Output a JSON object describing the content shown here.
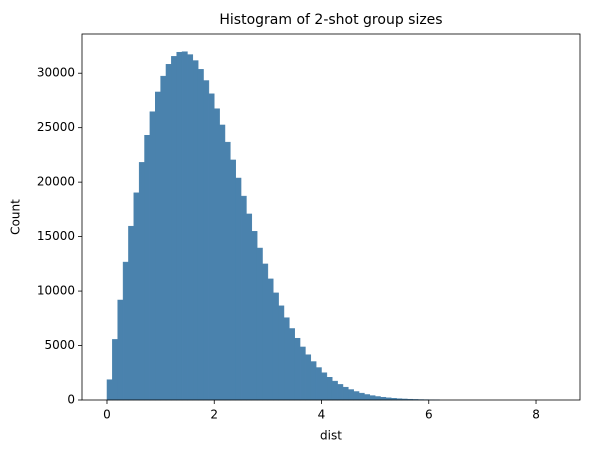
{
  "chart_data": {
    "type": "histogram",
    "title": "Histogram of 2-shot group sizes",
    "x_label": "dist",
    "y_label": "Count",
    "color": "#4a82ad",
    "bins": [
      0,
      0.1,
      0.2,
      0.3,
      0.4,
      0.5,
      0.6,
      0.7,
      0.8,
      0.9,
      1,
      1.1,
      1.2,
      1.3,
      1.4,
      1.5,
      1.6,
      1.7,
      1.8,
      1.9,
      2,
      2.1,
      2.2,
      2.3,
      2.4,
      2.5,
      2.6,
      2.7,
      2.8,
      2.9,
      3,
      3.1,
      3.2,
      3.3,
      3.4,
      3.5,
      3.6,
      3.7,
      3.8,
      3.9,
      4,
      4.1,
      4.2,
      4.3,
      4.4,
      4.5,
      4.6,
      4.7,
      4.8,
      4.9,
      5,
      5.1,
      5.2,
      5.3,
      5.4,
      5.5,
      5.6,
      5.7,
      5.8,
      5.9,
      6,
      6.1,
      6.2
    ],
    "values": [
      1864,
      5564,
      9180,
      12661,
      15956,
      19021,
      21815,
      24305,
      26466,
      28278,
      29731,
      30819,
      31548,
      31927,
      31974,
      31710,
      31161,
      30356,
      29328,
      28111,
      26741,
      25250,
      23671,
      22039,
      20378,
      18718,
      17081,
      15486,
      13951,
      12492,
      11118,
      9834,
      8646,
      7556,
      6565,
      5671,
      4870,
      4157,
      3530,
      2979,
      2501,
      2088,
      1734,
      1432,
      1176,
      960,
      779,
      629,
      505,
      404,
      321,
      254,
      199,
      156,
      121,
      94,
      72,
      55,
      42,
      32,
      24,
      18
    ],
    "xlim": [
      -0.466,
      8.82
    ],
    "xticks": [
      0,
      2,
      4,
      6,
      8
    ],
    "ylim": [
      0,
      33600
    ],
    "yticks": [
      0,
      5000,
      10000,
      15000,
      20000,
      25000,
      30000
    ]
  }
}
